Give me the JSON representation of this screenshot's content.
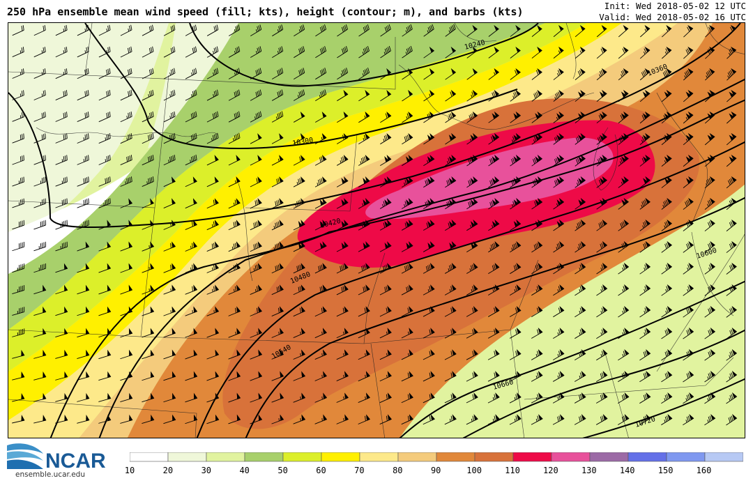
{
  "header": {
    "title": "250 hPa ensemble mean wind speed (fill; kts), height (contour; m), and barbs (kts)",
    "init": "Init: Wed 2018-05-02 12 UTC",
    "valid": "Valid: Wed 2018-05-02 16 UTC"
  },
  "contours": [
    {
      "label": "10240"
    },
    {
      "label": "10300"
    },
    {
      "label": "10360"
    },
    {
      "label": "10420"
    },
    {
      "label": "10480"
    },
    {
      "label": "10540"
    },
    {
      "label": "10600"
    },
    {
      "label": "10660"
    },
    {
      "label": "10720"
    }
  ],
  "colorbar": {
    "ticks": [
      "10",
      "20",
      "30",
      "40",
      "50",
      "60",
      "70",
      "80",
      "90",
      "100",
      "110",
      "120",
      "130",
      "140",
      "150",
      "160"
    ],
    "colors": [
      "#ffffff",
      "#eff7d9",
      "#e1f39f",
      "#a8d06b",
      "#dcef2a",
      "#fff000",
      "#fde98a",
      "#f4cb7c",
      "#e1883a",
      "#d8723a",
      "#ee0a47",
      "#e8519b",
      "#9c6aa6",
      "#6470e8",
      "#7f98f0",
      "#b7c9f4"
    ]
  },
  "logo": {
    "text": "NCAR",
    "url_text": "ensemble.ucar.edu"
  }
}
